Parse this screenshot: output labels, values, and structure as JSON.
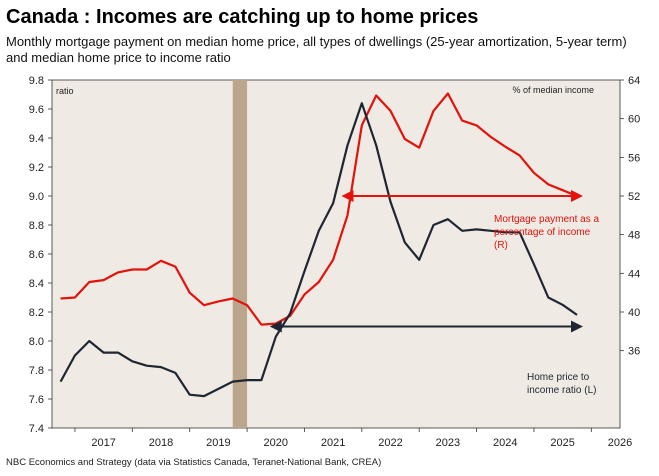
{
  "chart_data": {
    "type": "line",
    "title": "Canada : Incomes are catching up to home prices",
    "subtitle": "Monthly mortgage payment on median home price, all types of dwellings (25-year amortization, 5-year term) and median home price to income ratio",
    "source": "NBC Economics and Strategy (data via Statistics Canada, Teranet-National Bank, CREA)",
    "left_axis_label": "ratio",
    "right_axis_label": "% of median income",
    "left_ylim": [
      7.4,
      9.8
    ],
    "left_ticks": [
      "7.4",
      "7.6",
      "7.8",
      "8.0",
      "8.2",
      "8.4",
      "8.6",
      "8.8",
      "9.0",
      "9.2",
      "9.4",
      "9.6",
      "9.8"
    ],
    "right_ylim": [
      28,
      64
    ],
    "right_ticks": [
      "36",
      "40",
      "44",
      "48",
      "52",
      "56",
      "60",
      "64"
    ],
    "x_ticks": [
      "2017",
      "2018",
      "2019",
      "2020",
      "2021",
      "2022",
      "2023",
      "2024",
      "2025",
      "2026"
    ],
    "x_range": [
      2016.6,
      2026.5
    ],
    "recession_shade": [
      2019.75,
      2020.0
    ],
    "colors": {
      "mortgage": "#e3120b",
      "ratio": "#1f2633",
      "shade": "#b9a68c",
      "background": "#efebe4"
    },
    "series": [
      {
        "name": "Mortgage payment as a percentage of income (R)",
        "axis": "right",
        "x": [
          2016.75,
          2017.0,
          2017.25,
          2017.5,
          2017.75,
          2018.0,
          2018.25,
          2018.5,
          2018.75,
          2019.0,
          2019.25,
          2019.5,
          2019.75,
          2020.0,
          2020.25,
          2020.5,
          2020.75,
          2021.0,
          2021.25,
          2021.5,
          2021.75,
          2022.0,
          2022.25,
          2022.5,
          2022.75,
          2023.0,
          2023.25,
          2023.5,
          2023.75,
          2024.0,
          2024.25,
          2024.5,
          2024.75,
          2025.0,
          2025.25,
          2025.5,
          2025.75
        ],
        "values": [
          41.4,
          41.5,
          43.1,
          43.3,
          44.1,
          44.4,
          44.4,
          45.3,
          44.7,
          42.0,
          40.7,
          41.1,
          41.4,
          40.7,
          38.7,
          38.8,
          39.6,
          41.8,
          43.1,
          45.4,
          50.0,
          59.3,
          62.4,
          60.8,
          57.9,
          57.0,
          60.8,
          62.6,
          59.8,
          59.3,
          58.1,
          57.1,
          56.2,
          54.4,
          53.2,
          52.6,
          52.0
        ]
      },
      {
        "name": "Home price to income ratio (L)",
        "axis": "left",
        "x": [
          2016.75,
          2017.0,
          2017.25,
          2017.5,
          2017.75,
          2018.0,
          2018.25,
          2018.5,
          2018.75,
          2019.0,
          2019.25,
          2019.5,
          2019.75,
          2020.0,
          2020.25,
          2020.5,
          2020.75,
          2021.0,
          2021.25,
          2021.5,
          2021.75,
          2022.0,
          2022.25,
          2022.5,
          2022.75,
          2023.0,
          2023.25,
          2023.5,
          2023.75,
          2024.0,
          2024.25,
          2024.5,
          2024.75,
          2025.0,
          2025.25,
          2025.5,
          2025.75
        ],
        "values": [
          7.72,
          7.9,
          8.0,
          7.92,
          7.92,
          7.86,
          7.83,
          7.82,
          7.78,
          7.63,
          7.62,
          7.67,
          7.72,
          7.73,
          7.73,
          8.03,
          8.19,
          8.48,
          8.76,
          8.95,
          9.35,
          9.64,
          9.35,
          8.96,
          8.68,
          8.56,
          8.8,
          8.84,
          8.76,
          8.77,
          8.76,
          8.75,
          8.75,
          8.53,
          8.3,
          8.25,
          8.18
        ]
      }
    ],
    "annotations": [
      {
        "series": 0,
        "lines": [
          "Mortgage payment as a",
          "percentage of income",
          "(R)"
        ],
        "arrow_x": [
          2021.75,
          2025.75
        ]
      },
      {
        "series": 1,
        "lines": [
          "Home price to",
          "income ratio (L)"
        ],
        "arrow_x": [
          2020.5,
          2025.75
        ]
      }
    ]
  }
}
